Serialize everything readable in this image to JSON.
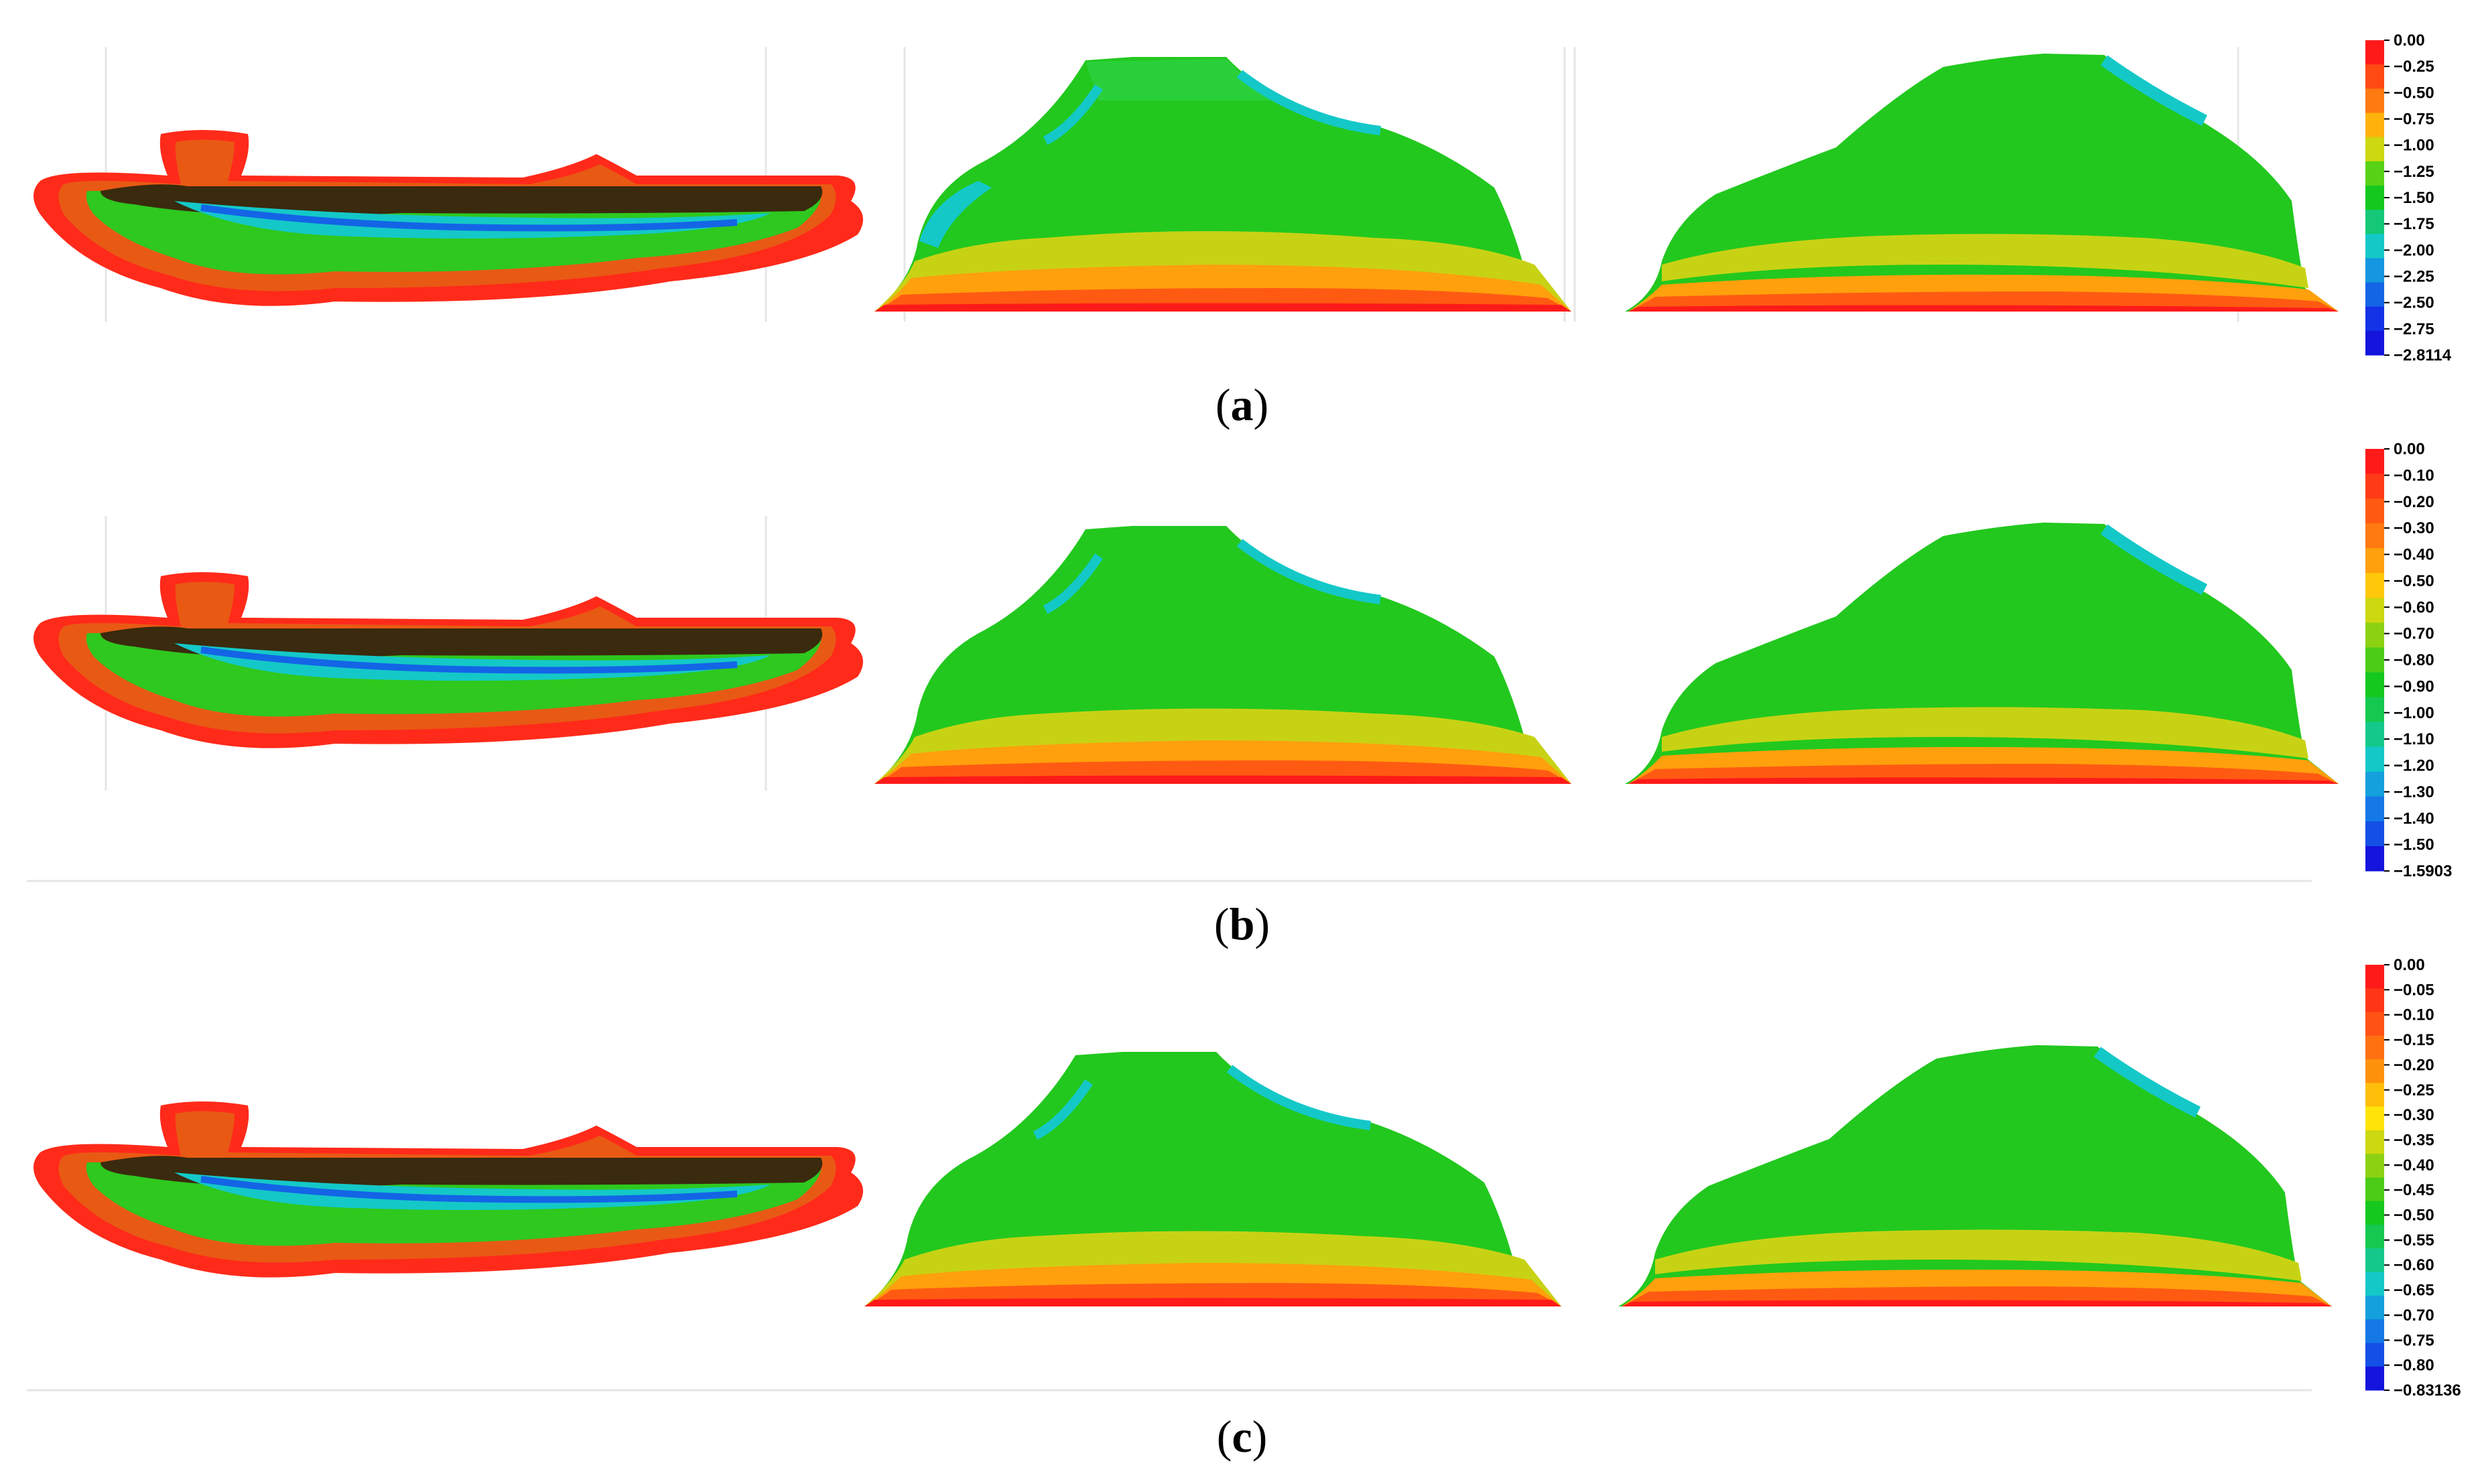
{
  "panels": [
    {
      "id": "a",
      "caption_letter": "a",
      "scale": {
        "labels": [
          "0.00",
          "−0.25",
          "−0.50",
          "−0.75",
          "−1.00",
          "−1.25",
          "−1.50",
          "−1.75",
          "−2.00",
          "−2.25",
          "−2.50",
          "−2.75",
          "−2.8114"
        ],
        "colors": [
          "#ff1a1a",
          "#ff4a14",
          "#ff7a10",
          "#ffb20c",
          "#ccd810",
          "#57d214",
          "#14c81e",
          "#14c878",
          "#14c8c8",
          "#1496e0",
          "#1464e6",
          "#1432e6",
          "#1414dc"
        ]
      }
    },
    {
      "id": "b",
      "caption_letter": "b",
      "scale": {
        "labels": [
          "0.00",
          "−0.10",
          "−0.20",
          "−0.30",
          "−0.40",
          "−0.50",
          "−0.60",
          "−0.70",
          "−0.80",
          "−0.90",
          "−1.00",
          "−1.10",
          "−1.20",
          "−1.30",
          "−1.40",
          "−1.50",
          "−1.5903"
        ],
        "colors": [
          "#ff1a1a",
          "#ff3a16",
          "#ff5a12",
          "#ff7a10",
          "#ffa00c",
          "#ffc80a",
          "#ccd810",
          "#8cd212",
          "#4ccc16",
          "#14c81e",
          "#14c850",
          "#14c88c",
          "#14c8c8",
          "#14a0dc",
          "#1478e6",
          "#1450e6",
          "#1414dc"
        ]
      }
    },
    {
      "id": "c",
      "caption_letter": "c",
      "scale": {
        "labels": [
          "0.00",
          "−0.05",
          "−0.10",
          "−0.15",
          "−0.20",
          "−0.25",
          "−0.30",
          "−0.35",
          "−0.40",
          "−0.45",
          "−0.50",
          "−0.55",
          "−0.60",
          "−0.65",
          "−0.70",
          "−0.75",
          "−0.80",
          "−0.83136"
        ],
        "colors": [
          "#ff1a1a",
          "#ff3616",
          "#ff5214",
          "#ff7010",
          "#ff920c",
          "#ffbe0a",
          "#ffe40a",
          "#ccd810",
          "#8cd212",
          "#4ccc16",
          "#14c81e",
          "#14c850",
          "#14c88c",
          "#14c8c8",
          "#14a0dc",
          "#1478e6",
          "#1450e6",
          "#1414dc"
        ]
      }
    }
  ]
}
